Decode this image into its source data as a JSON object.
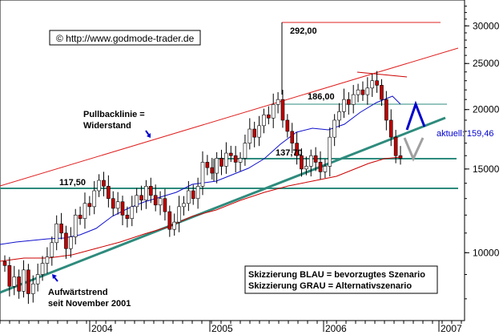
{
  "chart_data": {
    "type": "line",
    "copyright": "© http://www.godmode-trader.de",
    "y_axis": {
      "scale": "log",
      "ticks": [
        10000,
        15000,
        20000,
        25000,
        30000
      ],
      "range": [
        7200,
        34000
      ]
    },
    "x_axis": {
      "ticks": [
        "2004",
        "2005",
        "2006",
        "2007"
      ]
    },
    "colors": {
      "candles": "#c00000",
      "channel": "#e02020",
      "ma_blue": "#1010cc",
      "ma_red": "#cc0000",
      "support": "#2e8b7d",
      "blue_arrow": "#0000cc",
      "gray_arrow": "#a0a0a0",
      "current_label": "#0000cc"
    },
    "series": [
      {
        "values": [
          9400,
          8500,
          8900,
          8300,
          9200,
          8200,
          8600,
          9000,
          9500,
          9800,
          10500,
          11500,
          11000,
          10200,
          10800,
          12000,
          11800,
          12700,
          12500,
          13500,
          14200,
          13800,
          13000,
          12400,
          12800,
          12000,
          11800,
          12500,
          13200,
          12900,
          13800,
          13200,
          12600,
          13000,
          12200,
          11200,
          11600,
          12500,
          12700,
          13500,
          13000,
          13800,
          15500,
          15100,
          14700,
          15800,
          15200,
          16200,
          16000,
          15500,
          15800,
          17000,
          18200,
          17500,
          18500,
          19500,
          19200,
          20500,
          21000,
          19000,
          18000,
          17000,
          16000,
          15000,
          15200,
          16000,
          15500,
          14800,
          15200,
          17500,
          19000,
          19800,
          21000,
          20500,
          21500,
          22000,
          21500,
          22200,
          23000,
          22500,
          21000,
          19000,
          17500,
          16000,
          15800
        ]
      }
    ],
    "annotations": {
      "level_292": "292,00",
      "level_186": "186,00",
      "level_137": "137,70",
      "level_117": "117,50",
      "pullback_line1": "Pullbacklinie =",
      "pullback_line2": "Widerstand",
      "uptrend_line1": "Aufwärtstrend",
      "uptrend_line2": "seit November 2001",
      "current": "aktuell: 159,46",
      "legend_line1": "Skizzierung BLAU = bevorzugtes Szenario",
      "legend_line2": "Skizzierung GRAU = Alternativszenario"
    }
  }
}
